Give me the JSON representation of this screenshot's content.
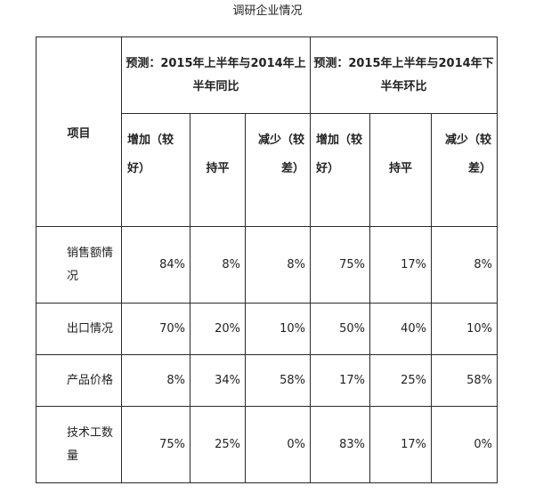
{
  "caption": "调研企业情况",
  "header": {
    "item": "项目",
    "group1": "预测：2015年上半年与2014年上半年同比",
    "group2": "预测：2015年上半年与2014年下半年环比",
    "sub": [
      "增加（较好）",
      "持平",
      "减少（较差）",
      "增加（较好）",
      "持平",
      "减少（较差）"
    ]
  },
  "rows": [
    {
      "label": "销售额情况",
      "values": [
        "84%",
        "8%",
        "8%",
        "75%",
        "17%",
        "8%"
      ]
    },
    {
      "label": "出口情况",
      "values": [
        "70%",
        "20%",
        "10%",
        "50%",
        "40%",
        "10%"
      ]
    },
    {
      "label": "产品价格",
      "values": [
        "8%",
        "34%",
        "58%",
        "17%",
        "25%",
        "58%"
      ]
    },
    {
      "label": "技术工数量",
      "values": [
        "75%",
        "25%",
        "0%",
        "83%",
        "17%",
        "0%"
      ]
    }
  ]
}
